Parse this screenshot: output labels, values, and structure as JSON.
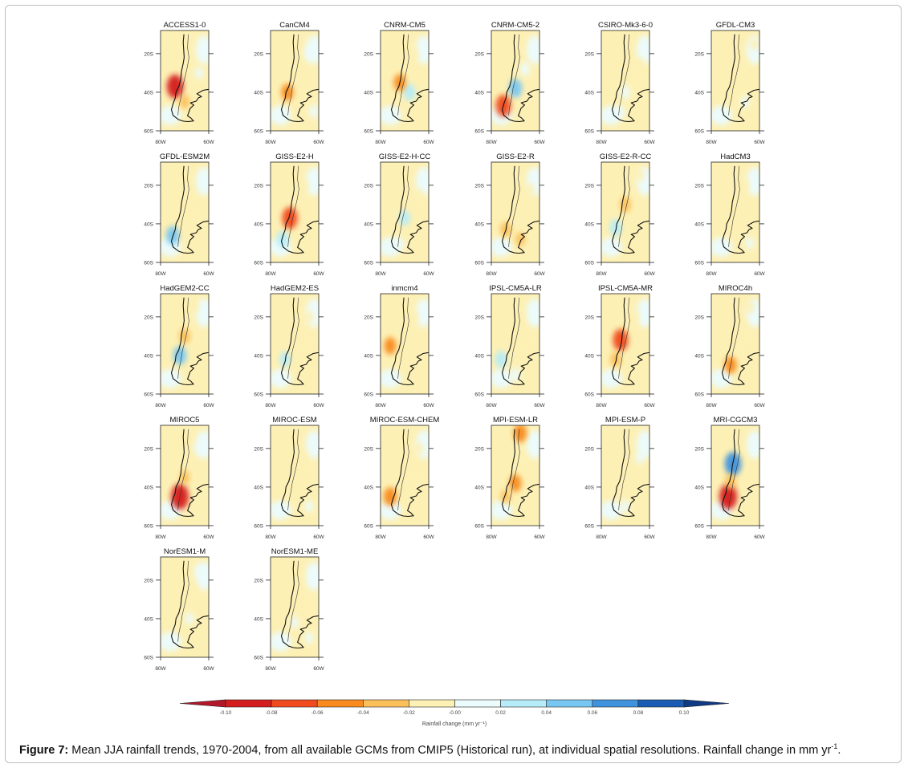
{
  "figure": {
    "models": [
      "ACCESS1-0",
      "CanCM4",
      "CNRM-CM5",
      "CNRM-CM5-2",
      "CSIRO-Mk3-6-0",
      "GFDL-CM3",
      "GFDL-ESM2M",
      "GISS-E2-H",
      "GISS-E2-H-CC",
      "GISS-E2-R",
      "GISS-E2-R-CC",
      "HadCM3",
      "HadGEM2-CC",
      "HadGEM2-ES",
      "inmcm4",
      "IPSL-CM5A-LR",
      "IPSL-CM5A-MR",
      "MIROC4h",
      "MIROC5",
      "MIROC-ESM",
      "MIROC-ESM-CHEM",
      "MPI-ESM-LR",
      "MPI-ESM-P",
      "MRI-CGCM3",
      "NorESM1-M",
      "NorESM1-ME"
    ],
    "lat_ticks": [
      "20S",
      "40S",
      "60S"
    ],
    "lon_ticks": [
      "80W",
      "60W"
    ],
    "anomalies": [
      [
        {
          "lat": -37,
          "lon": -74,
          "v": -0.08
        },
        {
          "lat": -45,
          "lon": -70,
          "v": -0.02
        },
        {
          "lat": -30,
          "lon": -64,
          "v": 0.01
        }
      ],
      [
        {
          "lat": -40,
          "lon": -73,
          "v": -0.04
        },
        {
          "lat": -20,
          "lon": -64,
          "v": 0.02
        },
        {
          "lat": -50,
          "lon": -62,
          "v": 0.02
        }
      ],
      [
        {
          "lat": -40,
          "lon": -68,
          "v": 0.04
        },
        {
          "lat": -35,
          "lon": -72,
          "v": -0.04
        },
        {
          "lat": -20,
          "lon": -66,
          "v": -0.01
        }
      ],
      [
        {
          "lat": -38,
          "lon": -70,
          "v": 0.05
        },
        {
          "lat": -47,
          "lon": -75,
          "v": -0.07
        },
        {
          "lat": -28,
          "lon": -66,
          "v": 0.02
        }
      ],
      [
        {
          "lat": -40,
          "lon": -70,
          "v": 0.02
        },
        {
          "lat": -25,
          "lon": -64,
          "v": -0.01
        },
        {
          "lat": -50,
          "lon": -72,
          "v": 0.01
        }
      ],
      [
        {
          "lat": -30,
          "lon": -68,
          "v": -0.01
        },
        {
          "lat": -45,
          "lon": -66,
          "v": 0.01
        },
        {
          "lat": -15,
          "lon": -62,
          "v": -0.01
        }
      ],
      [
        {
          "lat": -46,
          "lon": -75,
          "v": 0.05
        },
        {
          "lat": -30,
          "lon": -66,
          "v": -0.01
        },
        {
          "lat": -15,
          "lon": -70,
          "v": -0.01
        }
      ],
      [
        {
          "lat": -37,
          "lon": -72,
          "v": -0.07
        },
        {
          "lat": -48,
          "lon": -75,
          "v": 0.04
        },
        {
          "lat": -20,
          "lon": -66,
          "v": -0.01
        }
      ],
      [
        {
          "lat": -37,
          "lon": -70,
          "v": 0.03
        },
        {
          "lat": -25,
          "lon": -64,
          "v": -0.01
        },
        {
          "lat": -50,
          "lon": -72,
          "v": 0.01
        }
      ],
      [
        {
          "lat": -43,
          "lon": -74,
          "v": -0.03
        },
        {
          "lat": -48,
          "lon": -68,
          "v": -0.02
        },
        {
          "lat": -22,
          "lon": -64,
          "v": -0.01
        }
      ],
      [
        {
          "lat": -42,
          "lon": -74,
          "v": 0.04
        },
        {
          "lat": -30,
          "lon": -70,
          "v": -0.03
        },
        {
          "lat": -15,
          "lon": -64,
          "v": -0.01
        }
      ],
      [
        {
          "lat": -40,
          "lon": -70,
          "v": -0.01
        },
        {
          "lat": -20,
          "lon": -66,
          "v": -0.01
        },
        {
          "lat": -50,
          "lon": -64,
          "v": 0.01
        }
      ],
      [
        {
          "lat": -40,
          "lon": -72,
          "v": 0.05
        },
        {
          "lat": -30,
          "lon": -70,
          "v": -0.03
        },
        {
          "lat": -15,
          "lon": -66,
          "v": -0.01
        }
      ],
      [
        {
          "lat": -42,
          "lon": -74,
          "v": 0.03
        },
        {
          "lat": -30,
          "lon": -66,
          "v": -0.01
        },
        {
          "lat": -20,
          "lon": -64,
          "v": -0.01
        }
      ],
      [
        {
          "lat": -35,
          "lon": -76,
          "v": -0.04
        },
        {
          "lat": -45,
          "lon": -70,
          "v": -0.01
        },
        {
          "lat": -20,
          "lon": -66,
          "v": -0.01
        }
      ],
      [
        {
          "lat": -42,
          "lon": -76,
          "v": 0.04
        },
        {
          "lat": -30,
          "lon": -66,
          "v": -0.01
        },
        {
          "lat": -50,
          "lon": -70,
          "v": 0.02
        }
      ],
      [
        {
          "lat": -32,
          "lon": -72,
          "v": -0.07
        },
        {
          "lat": -42,
          "lon": -74,
          "v": -0.03
        },
        {
          "lat": -20,
          "lon": -66,
          "v": -0.01
        }
      ],
      [
        {
          "lat": -45,
          "lon": -72,
          "v": -0.04
        },
        {
          "lat": -30,
          "lon": -68,
          "v": -0.01
        },
        {
          "lat": -15,
          "lon": -64,
          "v": -0.01
        }
      ],
      [
        {
          "lat": -45,
          "lon": -72,
          "v": -0.09
        },
        {
          "lat": -35,
          "lon": -70,
          "v": -0.02
        },
        {
          "lat": -20,
          "lon": -64,
          "v": 0.01
        }
      ],
      [
        {
          "lat": -40,
          "lon": -68,
          "v": -0.01
        },
        {
          "lat": -25,
          "lon": -66,
          "v": -0.01
        },
        {
          "lat": -50,
          "lon": -64,
          "v": 0.01
        }
      ],
      [
        {
          "lat": -45,
          "lon": -76,
          "v": -0.05
        },
        {
          "lat": -30,
          "lon": -66,
          "v": -0.01
        },
        {
          "lat": -20,
          "lon": -64,
          "v": -0.01
        }
      ],
      [
        {
          "lat": -12,
          "lon": -68,
          "v": -0.05
        },
        {
          "lat": -38,
          "lon": -70,
          "v": -0.04
        },
        {
          "lat": -45,
          "lon": -74,
          "v": -0.02
        }
      ],
      [
        {
          "lat": -40,
          "lon": -68,
          "v": -0.01
        },
        {
          "lat": -25,
          "lon": -64,
          "v": 0.01
        },
        {
          "lat": -50,
          "lon": -70,
          "v": 0.01
        }
      ],
      [
        {
          "lat": -28,
          "lon": -71,
          "v": 0.08
        },
        {
          "lat": -45,
          "lon": -73,
          "v": -0.09
        },
        {
          "lat": -37,
          "lon": -72,
          "v": -0.03
        }
      ],
      [
        {
          "lat": -40,
          "lon": -68,
          "v": 0.01
        },
        {
          "lat": -25,
          "lon": -66,
          "v": -0.01
        },
        {
          "lat": -15,
          "lon": -64,
          "v": 0.01
        }
      ],
      [
        {
          "lat": -42,
          "lon": -70,
          "v": 0.01
        },
        {
          "lat": -30,
          "lon": -66,
          "v": -0.01
        },
        {
          "lat": -50,
          "lon": -64,
          "v": 0.01
        }
      ]
    ]
  },
  "colorbar": {
    "levels": [
      -0.1,
      -0.08,
      -0.06,
      -0.04,
      -0.02,
      0.0,
      0.02,
      0.04,
      0.06,
      0.08,
      0.1
    ],
    "tick_labels": [
      "-0.10",
      "-0.08",
      "-0.06",
      "-0.04",
      "-0.02",
      "-0.00",
      "0.02",
      "0.04",
      "0.06",
      "0.08",
      "0.10"
    ],
    "colors": [
      "#b2182b",
      "#d41d1d",
      "#f04a1e",
      "#f88a1e",
      "#fbc05a",
      "#fdf0b4",
      "#ecfbfb",
      "#b6ecf9",
      "#78c7f2",
      "#3f92dc",
      "#1a5cb4",
      "#0e3a86"
    ],
    "label": "Rainfall change (mm yr⁻¹)"
  },
  "caption": {
    "label": "Figure 7:",
    "text": " Mean JJA rainfall trends, 1970-2004, from all available GCMs from CMIP5 (Historical run), at individual spatial resolutions. Rainfall change in mm yr",
    "sup": "-1",
    "end": "."
  }
}
